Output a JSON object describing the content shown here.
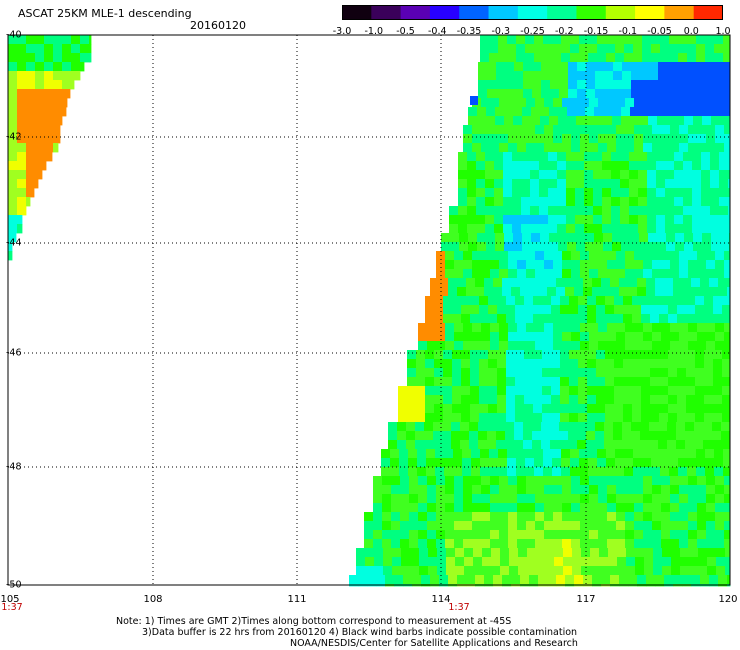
{
  "title": "ASCAT 25KM MLE-1 descending",
  "date": "20160120",
  "colorbar": {
    "labels": [
      "-3.0",
      "-1.0",
      "-0.5",
      "-0.4",
      "-0.35",
      "-0.3",
      "-0.25",
      "-0.2",
      "-0.15",
      "-0.1",
      "-0.05",
      "0.0",
      "1.0"
    ],
    "colors": [
      "#100010",
      "#3a005a",
      "#5a00b4",
      "#2800ff",
      "#0064ff",
      "#00c8ff",
      "#00ffe6",
      "#00ff96",
      "#32ff00",
      "#b4ff00",
      "#ffff00",
      "#ffa000",
      "#ff2800"
    ]
  },
  "axes": {
    "lat_labels": [
      "-40",
      "-42",
      "-44",
      "-46",
      "-48",
      "-50"
    ],
    "lon_labels": [
      "105",
      "108",
      "111",
      "114",
      "117",
      "120"
    ],
    "time_labels": [
      "1:37",
      "1:37"
    ]
  },
  "palette": {
    "orange": "#ff8c00",
    "yellow": "#f0ff00",
    "lime": "#a0ff20",
    "green": "#40ff20",
    "bright_green": "#20ff00",
    "aqua_green": "#00ff80",
    "cyan": "#00ffe0",
    "light_blue": "#00c8ff",
    "blue": "#0050ff"
  },
  "footer": {
    "note1": "Note: 1) Times are GMT 2)Times along bottom correspond to measurement at -45S",
    "note2": "3)Data buffer is 22 hrs from 20160120 4) Black wind barbs indicate possible contamination",
    "note3": "NOAA/NESDIS/Center for Satellite Applications and Research"
  }
}
